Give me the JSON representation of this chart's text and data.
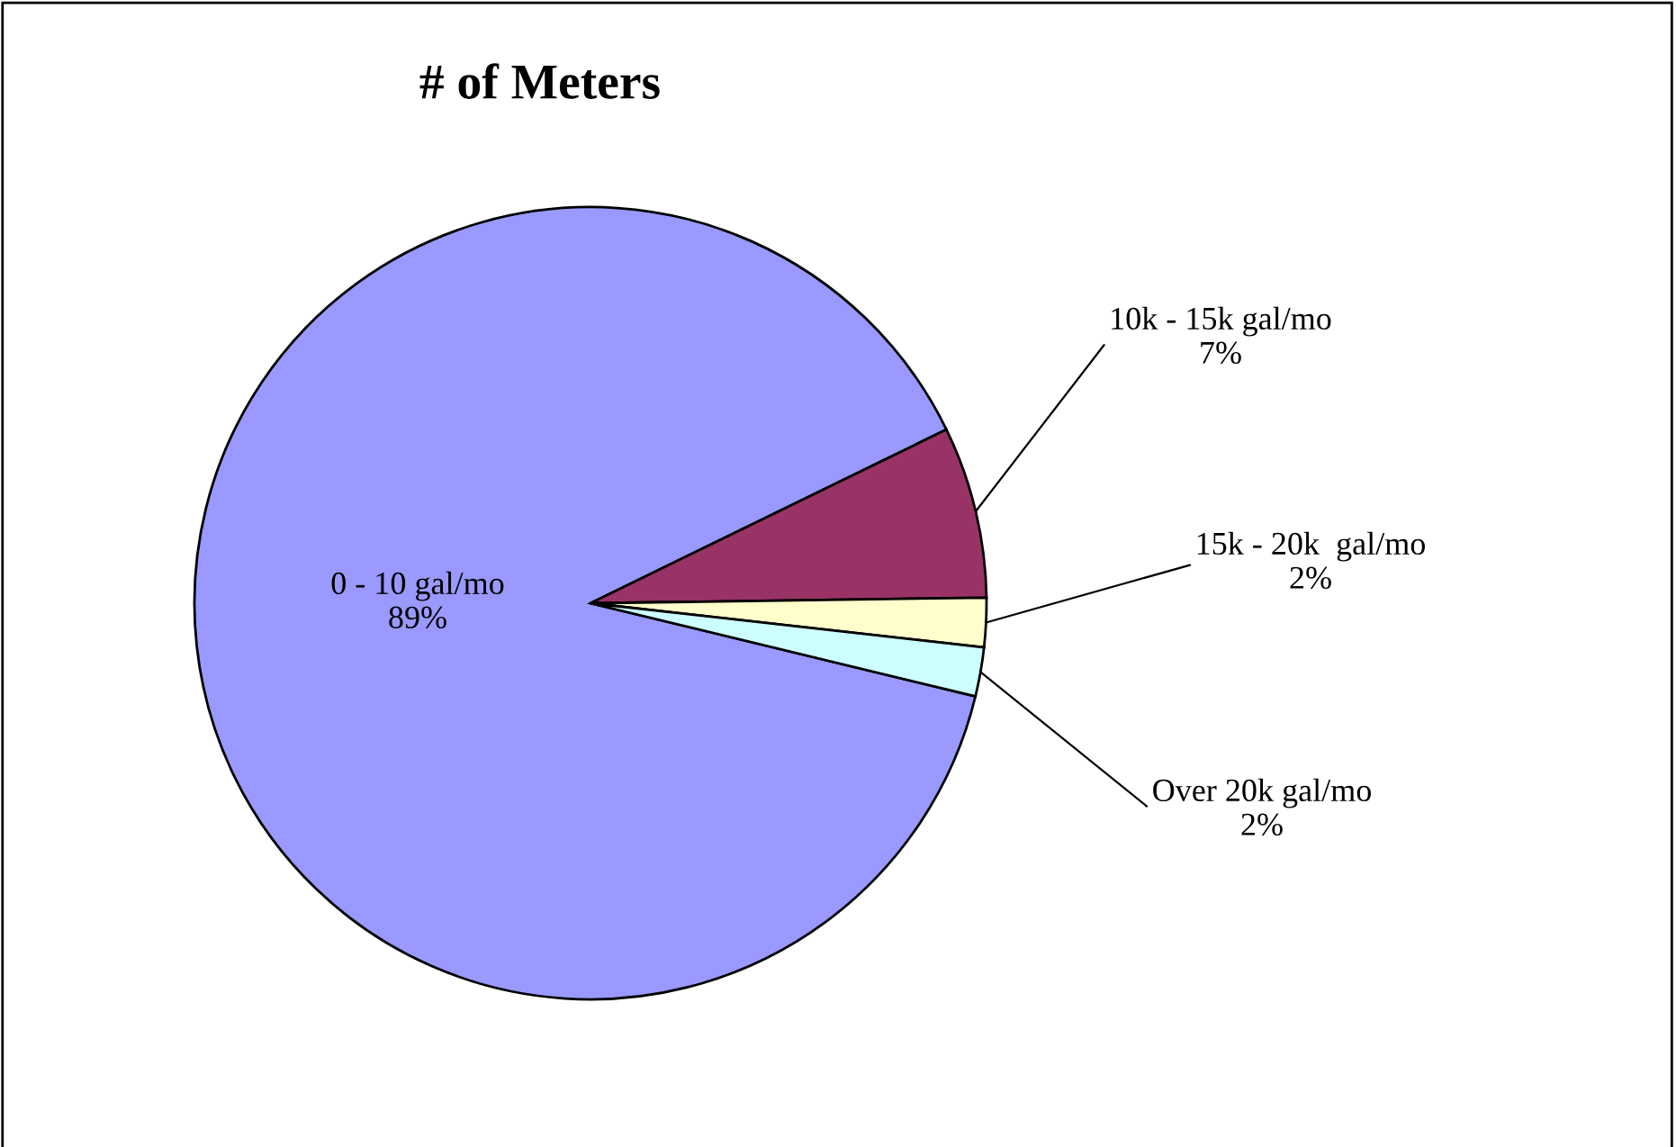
{
  "chart_data": {
    "type": "pie",
    "title": "# of Meters",
    "categories": [
      "0 - 10 gal/mo",
      "10k - 15k gal/mo",
      "15k - 20k  gal/mo",
      "Over 20k gal/mo"
    ],
    "values": [
      89,
      7,
      2,
      2
    ],
    "value_labels": [
      "89%",
      "7%",
      "2%",
      "2%"
    ],
    "colors": [
      "#9999ff",
      "#993366",
      "#ffffcc",
      "#ccffff"
    ],
    "legend": false
  }
}
